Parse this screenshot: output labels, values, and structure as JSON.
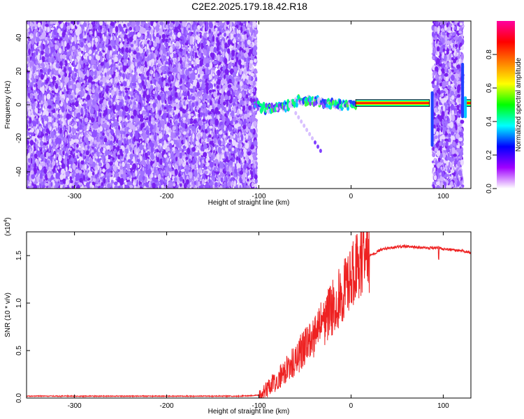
{
  "page_title": "C2E2.2025.179.18.42.R18",
  "chart_data": [
    {
      "type": "heatmap",
      "title": "C2E2.2025.179.18.42.R18",
      "xlabel": "Height of straight line (km)",
      "ylabel": "Frequency (Hz)",
      "xlim": [
        -352,
        130
      ],
      "ylim": [
        -50,
        50
      ],
      "x_ticks": [
        -300,
        -200,
        -100,
        0,
        100
      ],
      "x_tick_labels": [
        "-300",
        "-200",
        "-100",
        "0",
        "100"
      ],
      "y_ticks": [
        -40,
        -20,
        0,
        20,
        40
      ],
      "y_tick_labels": [
        "-40",
        "-20",
        "0",
        "20",
        "40"
      ],
      "colorbar": {
        "label": "Normalized spectral amplitude",
        "range": [
          0,
          1
        ],
        "ticks": [
          0.0,
          0.2,
          0.4,
          0.6,
          0.8
        ],
        "tick_labels": [
          "0.0",
          "0.2",
          "0.4",
          "0.6",
          "0.8"
        ],
        "colors": [
          "#ffffff",
          "#a000ff",
          "#0000ff",
          "#00ffff",
          "#00ff00",
          "#ffff00",
          "#ff8000",
          "#ff0000",
          "#ff00a0"
        ]
      },
      "regions": [
        {
          "kind": "noise",
          "x_range": [
            -352,
            -103
          ],
          "freq_range": [
            -50,
            50
          ]
        },
        {
          "kind": "signal-band",
          "x_range": [
            -105,
            5
          ],
          "freq_center": 0
        },
        {
          "kind": "strong-line",
          "x_range": [
            5,
            85
          ],
          "freq_center": 1
        },
        {
          "kind": "noise",
          "x_range": [
            89,
            121
          ],
          "freq_range": [
            -50,
            50
          ]
        },
        {
          "kind": "strong-line",
          "x_range": [
            125,
            130
          ],
          "freq_center": 1
        }
      ]
    },
    {
      "type": "line",
      "xlabel": "Height of straight line (km)",
      "ylabel": "SNR (10 * v/v)",
      "y_multiplier": "(x10",
      "y_multiplier_exp": "4",
      "xlim": [
        -352,
        130
      ],
      "ylim": [
        0,
        1.75
      ],
      "x_ticks": [
        -300,
        -200,
        -100,
        0,
        100
      ],
      "x_tick_labels": [
        "-300",
        "-200",
        "-100",
        "0",
        "100"
      ],
      "y_ticks": [
        0.0,
        0.5,
        1.0,
        1.5
      ],
      "y_tick_labels": [
        "0.0",
        "0.5",
        "1.0",
        "1.5"
      ],
      "color": "#ee2222",
      "series": [
        {
          "x": [
            -352,
            -300,
            -200,
            -120,
            -100,
            -90,
            -80,
            -70,
            -60,
            -50,
            -40,
            -30,
            -20,
            -10,
            0,
            5,
            10,
            15,
            20,
            25,
            30,
            40,
            60,
            80,
            95,
            100,
            120,
            130
          ],
          "values": [
            0.02,
            0.02,
            0.02,
            0.02,
            0.03,
            0.1,
            0.2,
            0.3,
            0.4,
            0.55,
            0.65,
            0.8,
            0.95,
            1.1,
            1.25,
            1.35,
            1.45,
            1.5,
            1.5,
            1.52,
            1.55,
            1.58,
            1.6,
            1.58,
            1.58,
            1.57,
            1.55,
            1.53
          ]
        }
      ]
    }
  ]
}
